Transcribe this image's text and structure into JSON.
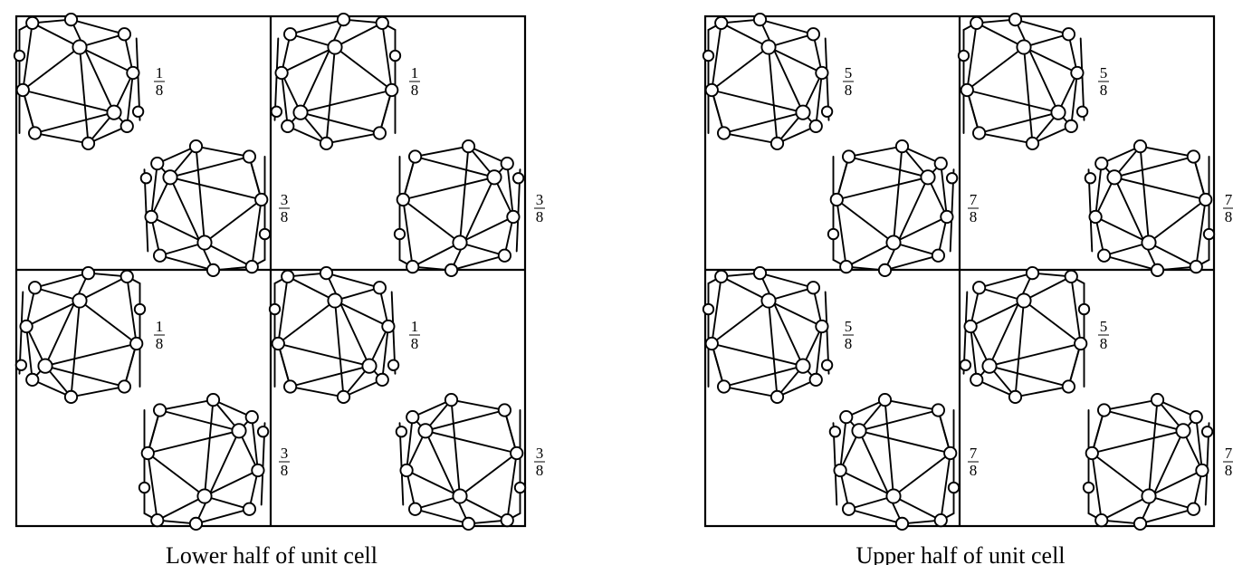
{
  "panels": [
    {
      "id": "lower",
      "caption": "Lower half of unit cell",
      "molecules": [
        {
          "label_num": "1",
          "label_den": "8",
          "orientation": "A"
        },
        {
          "label_num": "1",
          "label_den": "8",
          "orientation": "B"
        },
        {
          "label_num": "3",
          "label_den": "8",
          "orientation": "C"
        },
        {
          "label_num": "3",
          "label_den": "8",
          "orientation": "D"
        },
        {
          "label_num": "1",
          "label_den": "8",
          "orientation": "B"
        },
        {
          "label_num": "1",
          "label_den": "8",
          "orientation": "A"
        },
        {
          "label_num": "3",
          "label_den": "8",
          "orientation": "D"
        },
        {
          "label_num": "3",
          "label_den": "8",
          "orientation": "C"
        }
      ]
    },
    {
      "id": "upper",
      "caption": "Upper half of unit cell",
      "molecules": [
        {
          "label_num": "5",
          "label_den": "8",
          "orientation": "A"
        },
        {
          "label_num": "5",
          "label_den": "8",
          "orientation": "A"
        },
        {
          "label_num": "7",
          "label_den": "8",
          "orientation": "D"
        },
        {
          "label_num": "7",
          "label_den": "8",
          "orientation": "C"
        },
        {
          "label_num": "5",
          "label_den": "8",
          "orientation": "A"
        },
        {
          "label_num": "5",
          "label_den": "8",
          "orientation": "B"
        },
        {
          "label_num": "7",
          "label_den": "8",
          "orientation": "C"
        },
        {
          "label_num": "7",
          "label_den": "8",
          "orientation": "D"
        }
      ]
    }
  ]
}
